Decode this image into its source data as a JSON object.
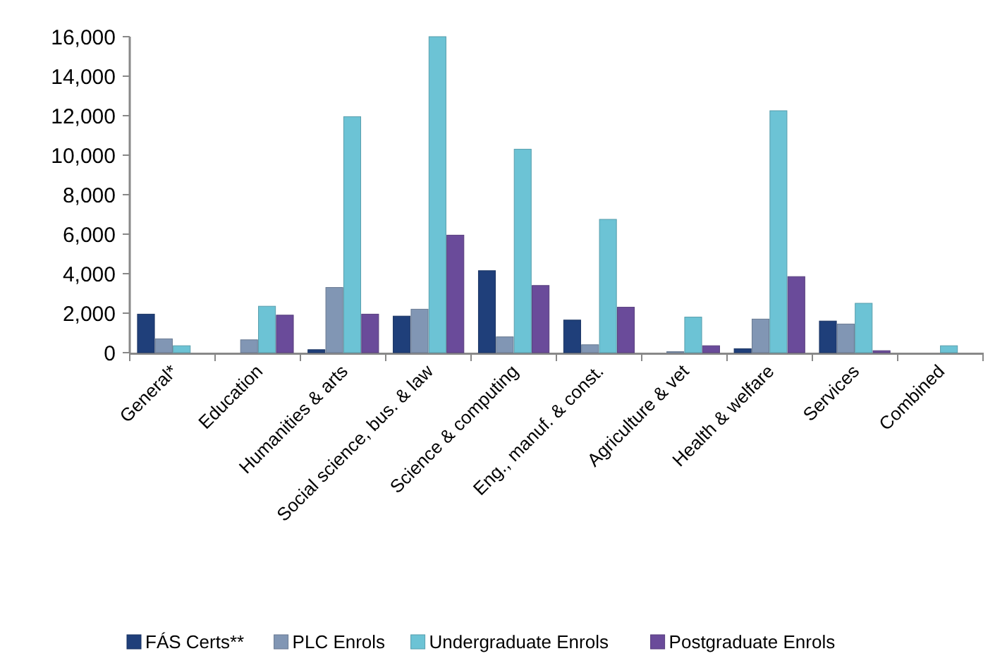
{
  "chart_data": {
    "type": "bar",
    "categories": [
      "General*",
      "Education",
      "Humanities & arts",
      "Social science, bus. & law",
      "Science & computing",
      "Eng., manuf. & const.",
      "Agriculture & vet",
      "Health & welfare",
      "Services",
      "Combined"
    ],
    "series": [
      {
        "name": "FÁS Certs**",
        "color": "#1f3f7a",
        "values": [
          1950,
          0,
          150,
          1850,
          4150,
          1650,
          0,
          200,
          1600,
          0
        ]
      },
      {
        "name": "PLC Enrols",
        "color": "#8196b4",
        "values": [
          700,
          650,
          3300,
          2200,
          800,
          400,
          50,
          1700,
          1450,
          0
        ]
      },
      {
        "name": "Undergraduate Enrols",
        "color": "#6cc3d5",
        "values": [
          350,
          2350,
          11950,
          16000,
          10300,
          6750,
          1800,
          12250,
          2500,
          350
        ]
      },
      {
        "name": "Postgraduate Enrols",
        "color": "#6a4b9a",
        "values": [
          0,
          1900,
          1950,
          5950,
          3400,
          2300,
          350,
          3850,
          100,
          0
        ]
      }
    ],
    "ylim": [
      0,
      16000
    ],
    "yticks": [
      {
        "value": 0,
        "label": "0"
      },
      {
        "value": 2000,
        "label": "2,000"
      },
      {
        "value": 4000,
        "label": "4,000"
      },
      {
        "value": 6000,
        "label": "6,000"
      },
      {
        "value": 8000,
        "label": "8,000"
      },
      {
        "value": 10000,
        "label": "10,000"
      },
      {
        "value": 12000,
        "label": "12,000"
      },
      {
        "value": 14000,
        "label": "14,000"
      },
      {
        "value": 16000,
        "label": "16,000"
      }
    ],
    "grid": false,
    "legend": "bottom"
  }
}
